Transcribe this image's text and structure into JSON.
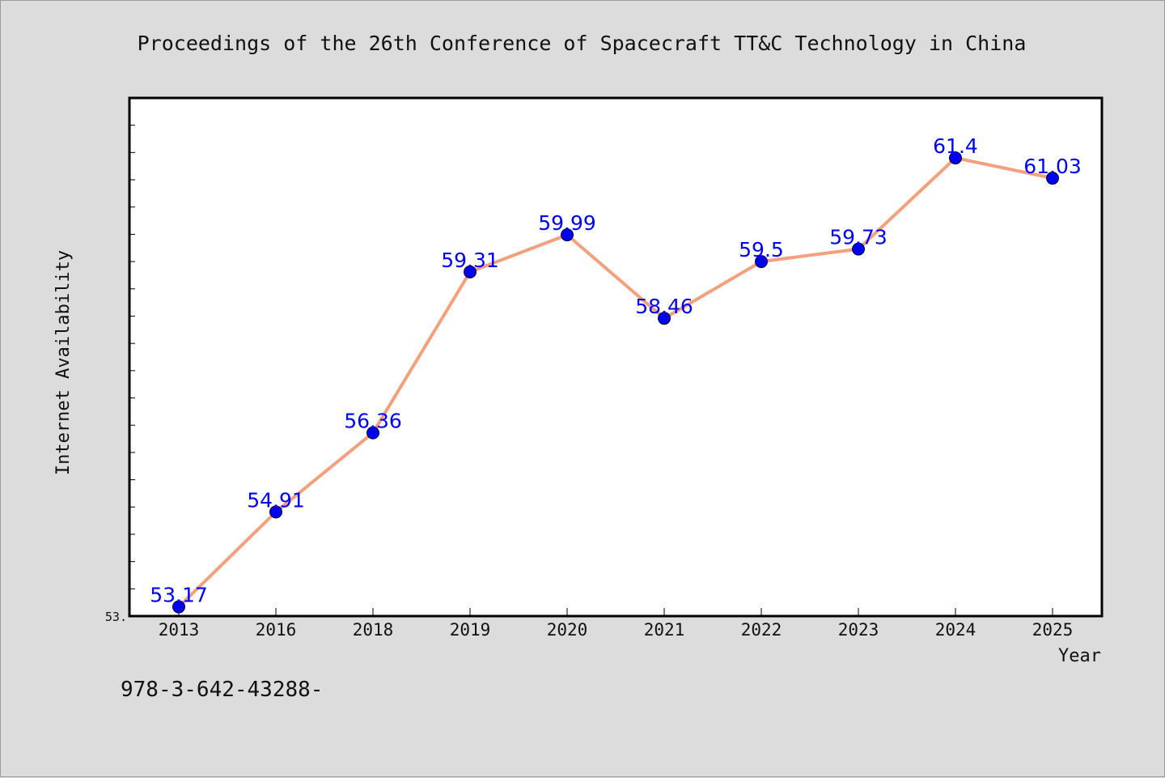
{
  "chart_data": {
    "type": "line",
    "title": "Proceedings of the 26th Conference of Spacecraft TT&C Technology in China",
    "xlabel": "Year",
    "ylabel": "Internet Availability",
    "categories": [
      "2013",
      "2016",
      "2018",
      "2019",
      "2020",
      "2021",
      "2022",
      "2023",
      "2024",
      "2025"
    ],
    "series": [
      {
        "values": [
          53.17,
          54.91,
          56.36,
          59.31,
          59.99,
          58.46,
          59.5,
          59.73,
          61.4,
          61.03
        ],
        "labels": [
          "53.17",
          "54.91",
          "56.36",
          "59.31",
          "59.99",
          "58.46",
          "59.5",
          "59.73",
          "61.4",
          "61.03"
        ],
        "line_color": "#f4a07c",
        "marker_color": "#0000ee",
        "label_color": "#0000ff"
      }
    ],
    "ylim": [
      53.0,
      62.5
    ],
    "y_tick_label": "53.",
    "grid": false,
    "legend": "none"
  },
  "footer": {
    "isbn": "978-3-642-43288-"
  }
}
